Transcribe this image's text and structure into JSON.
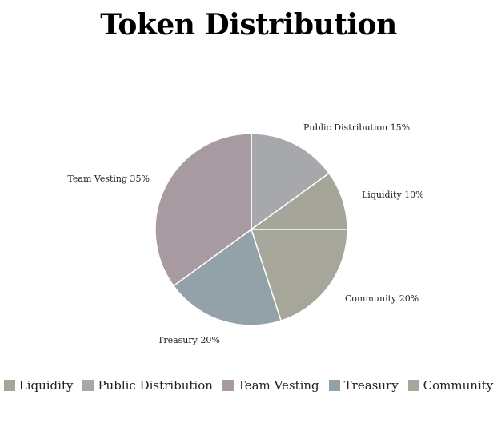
{
  "chart_data": {
    "type": "pie",
    "title": "Token Distribution",
    "categories": [
      "Liquidity",
      "Public Distribution",
      "Team Vesting",
      "Treasury",
      "Community"
    ],
    "values": [
      10,
      15,
      35,
      20,
      20
    ],
    "unit": "%",
    "colors": [
      "#a6a59a",
      "#a7a8ab",
      "#a79aa0",
      "#93a1a8",
      "#a6a69a"
    ],
    "slice_order": [
      "Public Distribution",
      "Liquidity",
      "Community",
      "Treasury",
      "Team Vesting"
    ],
    "slice_labels": {
      "Public Distribution": "Public Distribution 15%",
      "Liquidity": "Liquidity 10%",
      "Community": "Community 20%",
      "Treasury": "Treasury 20%",
      "Team Vesting": "Team Vesting 35%"
    },
    "start": "12 o'clock, clockwise",
    "legend_position": "bottom"
  }
}
